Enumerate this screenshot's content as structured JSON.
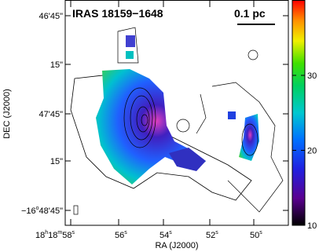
{
  "title": "IRAS 18159−1648",
  "scale_bar": "0.1 pc",
  "x_axis_label": "RA (J2000)",
  "y_axis_label": "DEC (J2000)",
  "dec_ticks": [
    [
      "46'45\""
    ],
    [
      "15\""
    ],
    [
      "47'45\""
    ],
    [
      "15\""
    ],
    [
      "−16",
      "o",
      "48'45\""
    ]
  ],
  "ra_ticks": [
    [
      "18",
      "h",
      "18",
      "m",
      "58",
      "s"
    ],
    [
      "56",
      "s"
    ],
    [
      "54",
      "s"
    ],
    [
      "52",
      "s"
    ],
    [
      "50",
      "s"
    ]
  ],
  "colorbar": {
    "lim": [
      10,
      40
    ],
    "ticks": [
      10,
      20,
      30
    ]
  }
}
